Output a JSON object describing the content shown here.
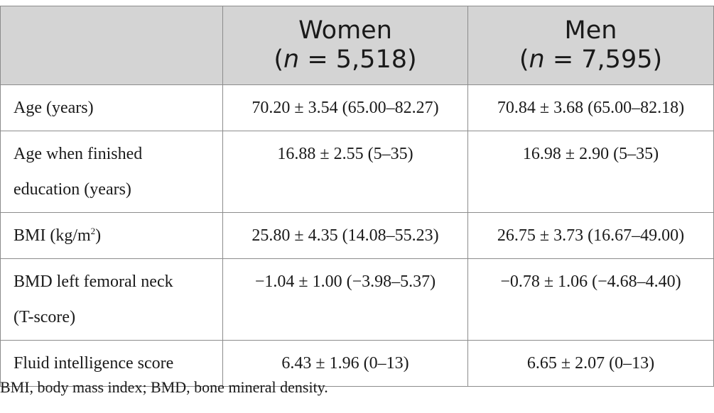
{
  "header": {
    "empty": "",
    "women_label": "Women",
    "women_n": "5,518",
    "men_label": "Men",
    "men_n": "7,595",
    "n_symbol": "n",
    "n_open": "(",
    "n_equals": " = ",
    "n_close": ")"
  },
  "rows": [
    {
      "label": "Age (years)",
      "women": "70.20 ± 3.54 (65.00–82.27)",
      "men": "70.84 ± 3.68 (65.00–82.18)"
    },
    {
      "label_line1": "Age when finished",
      "label_line2": "education (years)",
      "women": "16.88 ± 2.55 (5–35)",
      "men": "16.98 ± 2.90 (5–35)"
    },
    {
      "label": "BMI (kg/m",
      "label_sup": "2",
      "label_end": ")",
      "women": "25.80 ± 4.35 (14.08–55.23)",
      "men": "26.75 ± 3.73 (16.67–49.00)"
    },
    {
      "label_line1": "BMD left femoral neck",
      "label_line2": "(T-score)",
      "women": "−1.04 ± 1.00 (−3.98–5.37)",
      "men": "−0.78 ± 1.06 (−4.68–4.40)"
    },
    {
      "label": "Fluid intelligence score",
      "women": "6.43 ± 1.96 (0–13)",
      "men": "6.65 ± 2.07 (0–13)"
    }
  ],
  "footnote": "BMI, body mass index; BMD, bone mineral density.",
  "colors": {
    "header_bg": "#d4d4d4",
    "border": "#8c8c8c",
    "text": "#1a1a1a"
  }
}
